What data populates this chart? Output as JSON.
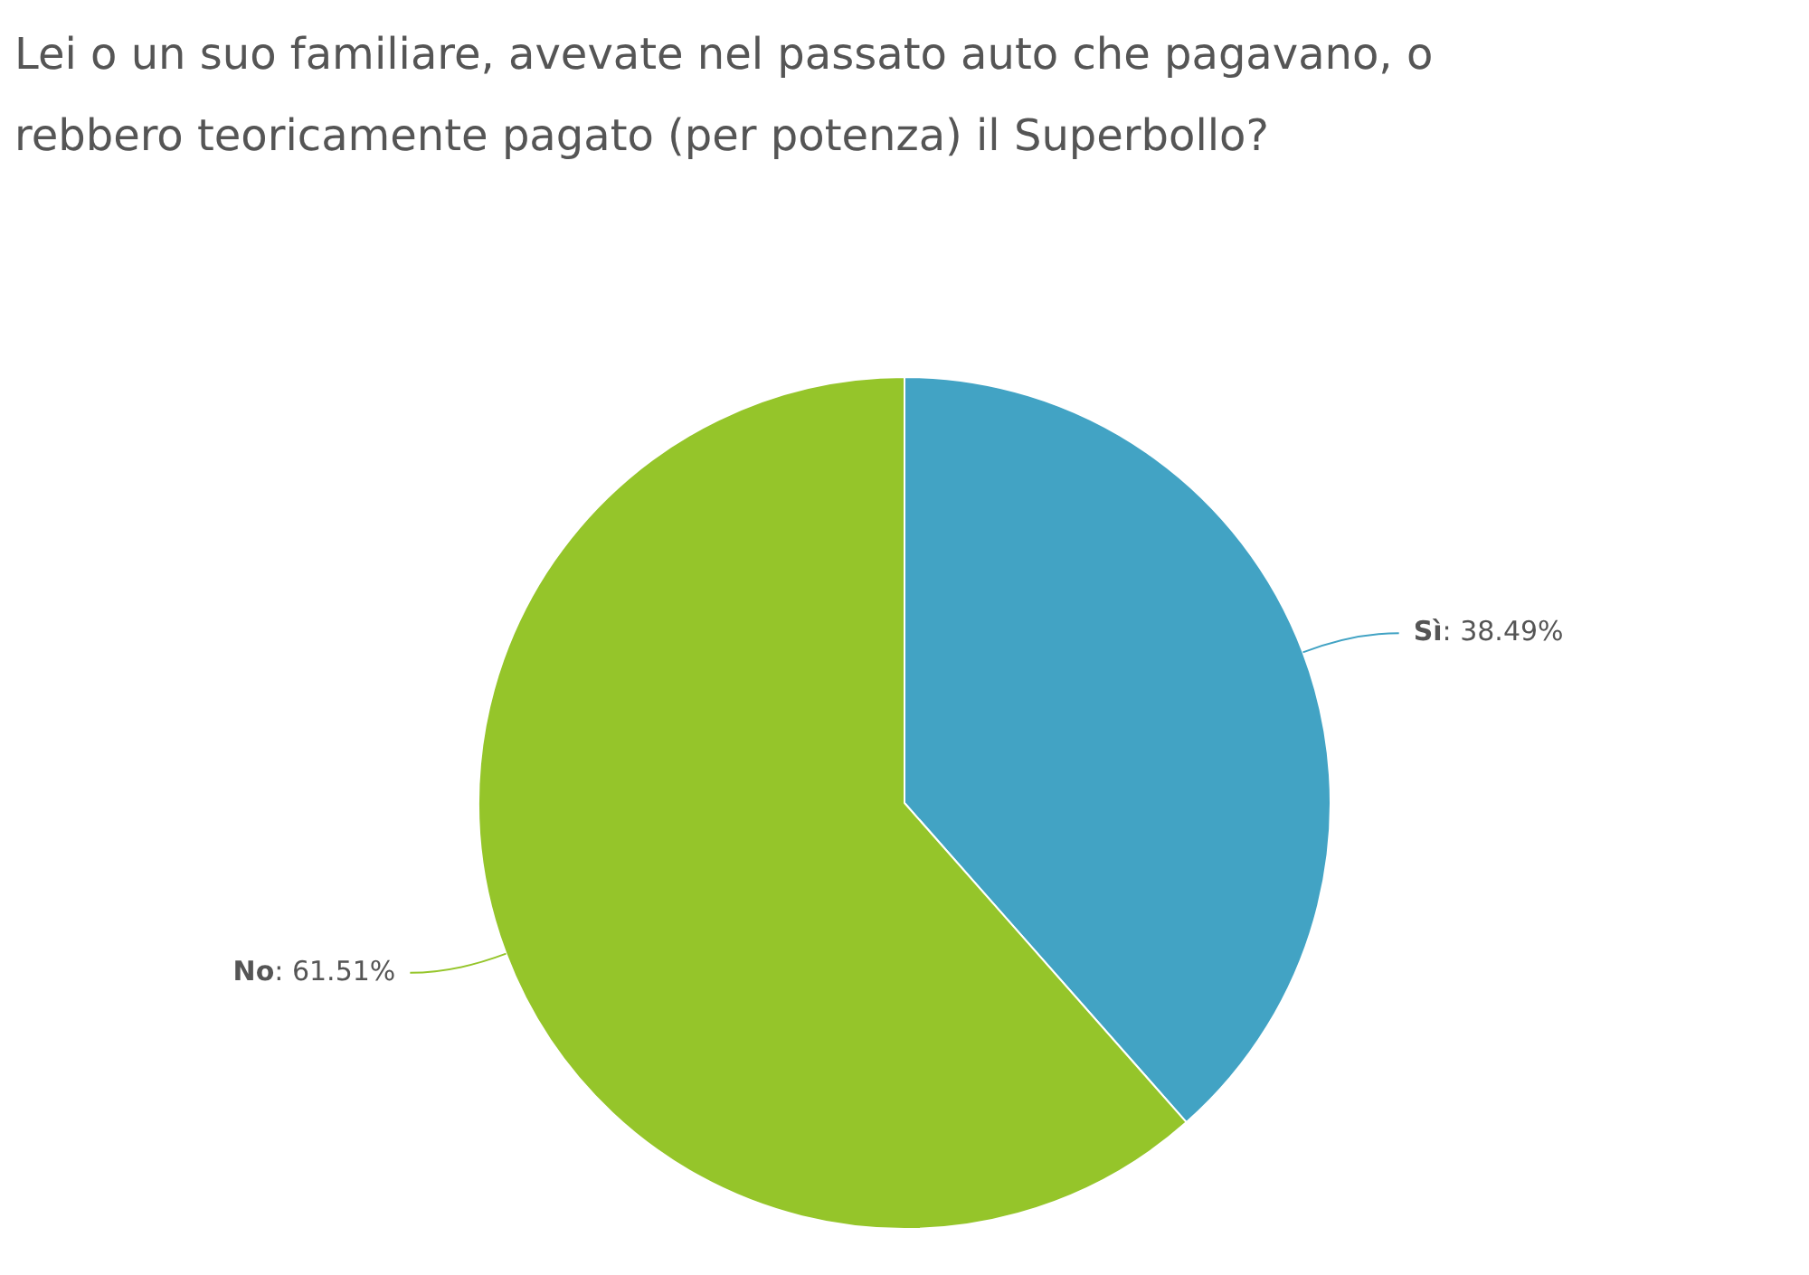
{
  "chart_data": {
    "type": "pie",
    "title": "Lei o un suo familiare, avevate nel passato auto che pagavano, o rebbero teoricamente pagato (per potenza) il Superbollo?",
    "categories": [
      "Sì",
      "No"
    ],
    "values": [
      38.49,
      61.51
    ],
    "colors": [
      "#42a3c4",
      "#95c52a"
    ],
    "value_labels": [
      ": 38.49%",
      ": 61.51%"
    ],
    "legend": false
  }
}
